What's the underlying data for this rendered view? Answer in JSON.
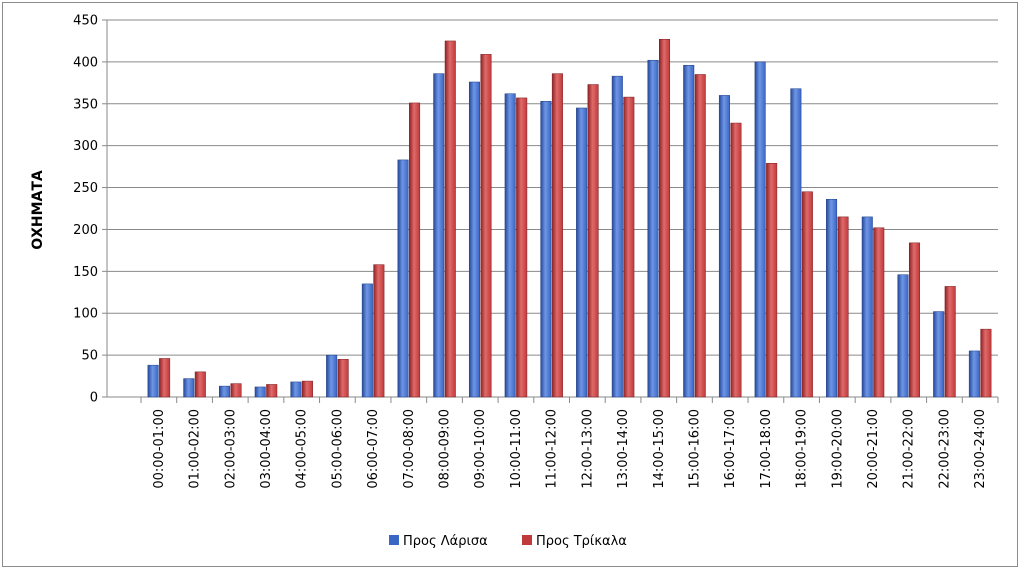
{
  "chart_data": {
    "type": "bar",
    "title": "",
    "xlabel": "",
    "ylabel": "ΟΧΗΜΑΤΑ",
    "ylim": [
      0,
      450
    ],
    "yticks": [
      0,
      50,
      100,
      150,
      200,
      250,
      300,
      350,
      400,
      450
    ],
    "grid": true,
    "legend_position": "bottom",
    "categories": [
      "00:00-01:00",
      "01:00-02:00",
      "02:00-03:00",
      "03:00-04:00",
      "04:00-05:00",
      "05:00-06:00",
      "06:00-07:00",
      "07:00-08:00",
      "08:00-09:00",
      "09:00-10:00",
      "10:00-11:00",
      "11:00-12:00",
      "12:00-13:00",
      "13:00-14:00",
      "14:00-15:00",
      "15:00-16:00",
      "16:00-17:00",
      "17:00-18:00",
      "18:00-19:00",
      "19:00-20:00",
      "20:00-21:00",
      "21:00-22:00",
      "22:00-23:00",
      "23:00-24:00"
    ],
    "series": [
      {
        "name": "Προς Λάρισα",
        "color": "#3a66c4",
        "values": [
          38,
          22,
          13,
          12,
          18,
          50,
          135,
          283,
          386,
          376,
          362,
          353,
          345,
          383,
          402,
          396,
          360,
          400,
          368,
          236,
          215,
          146,
          102,
          55
        ]
      },
      {
        "name": "Προς Τρίκαλα",
        "color": "#c0393b",
        "values": [
          46,
          30,
          16,
          15,
          19,
          45,
          158,
          351,
          425,
          409,
          357,
          386,
          373,
          358,
          427,
          385,
          327,
          279,
          245,
          215,
          202,
          184,
          132,
          81
        ]
      }
    ]
  }
}
